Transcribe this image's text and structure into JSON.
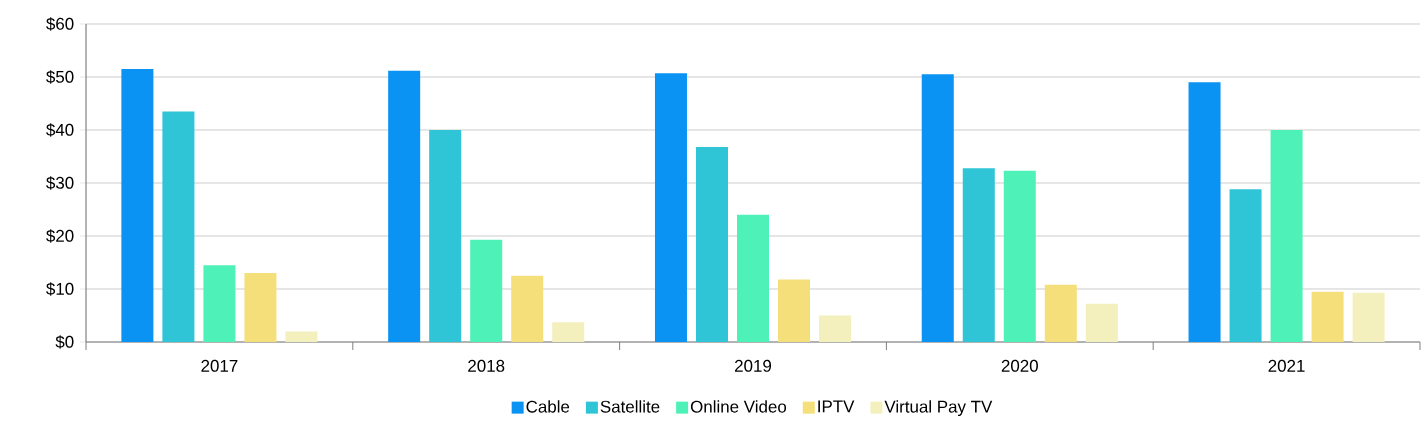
{
  "chart_data": {
    "type": "bar",
    "categories": [
      "2017",
      "2018",
      "2019",
      "2020",
      "2021"
    ],
    "series": [
      {
        "name": "Cable",
        "color": "#0a93f3",
        "values": [
          51.5,
          51.2,
          50.7,
          50.5,
          49
        ]
      },
      {
        "name": "Satellite",
        "color": "#2fc4d6",
        "values": [
          43.5,
          40,
          36.8,
          32.8,
          28.8
        ]
      },
      {
        "name": "Online Video",
        "color": "#4ef1b7",
        "values": [
          14.5,
          19.3,
          24,
          32.3,
          40
        ]
      },
      {
        "name": "IPTV",
        "color": "#f4df7a",
        "values": [
          13,
          12.5,
          11.8,
          10.8,
          9.5
        ]
      },
      {
        "name": "Virtual Pay TV",
        "color": "#f4f0bd",
        "values": [
          2,
          3.7,
          5,
          7.2,
          9.3
        ]
      }
    ],
    "ylim": [
      0,
      60
    ],
    "yticks": [
      {
        "value": 0,
        "label": "$0"
      },
      {
        "value": 10,
        "label": "$10"
      },
      {
        "value": 20,
        "label": "$20"
      },
      {
        "value": 30,
        "label": "$30"
      },
      {
        "value": 40,
        "label": "$40"
      },
      {
        "value": 50,
        "label": "$50"
      },
      {
        "value": 60,
        "label": "$60"
      }
    ],
    "grid": "y",
    "legend": "bottom"
  }
}
